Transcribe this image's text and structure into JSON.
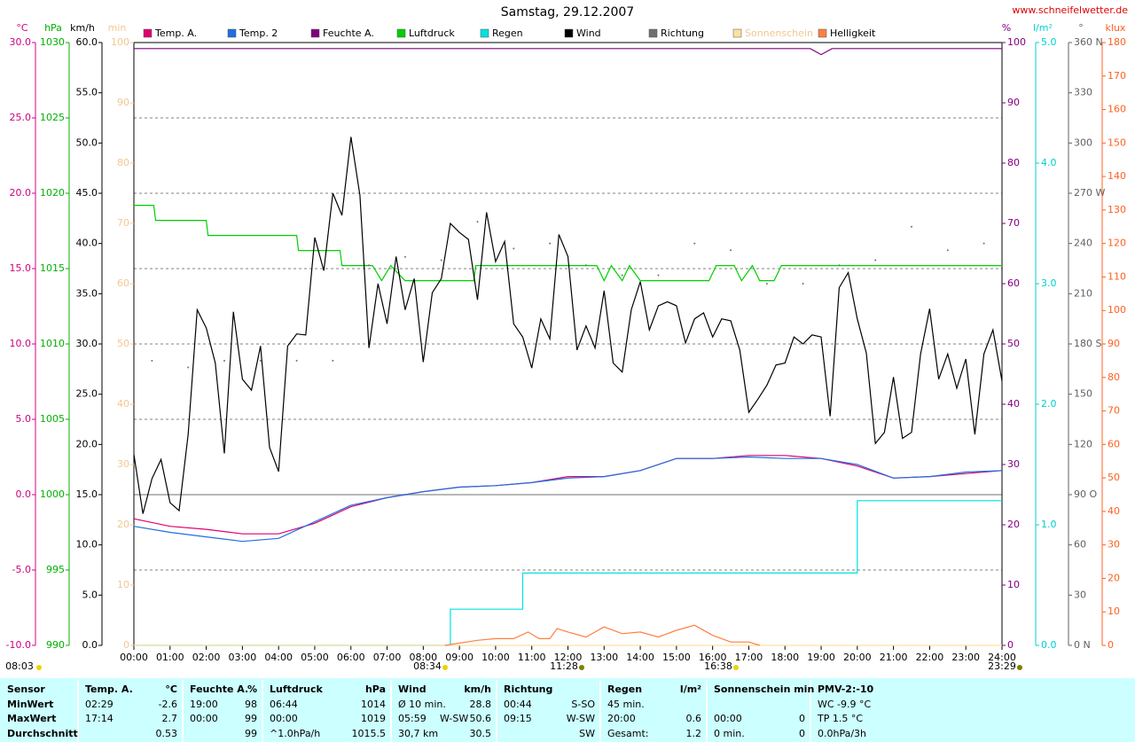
{
  "chart_data": {
    "type": "line",
    "title": "Samstag, 29.12.2007",
    "source": "www.schneifelwetter.de",
    "xlim": [
      0,
      24
    ],
    "xticks": [
      {
        "value": 0,
        "label": "00:00"
      },
      {
        "value": 1,
        "label": "01:00"
      },
      {
        "value": 2,
        "label": "02:00"
      },
      {
        "value": 3,
        "label": "03:00"
      },
      {
        "value": 4,
        "label": "04:00"
      },
      {
        "value": 5,
        "label": "05:00"
      },
      {
        "value": 6,
        "label": "06:00"
      },
      {
        "value": 7,
        "label": "07:00"
      },
      {
        "value": 8,
        "label": "08:00"
      },
      {
        "value": 9,
        "label": "09:00"
      },
      {
        "value": 10,
        "label": "10:00"
      },
      {
        "value": 11,
        "label": "11:00"
      },
      {
        "value": 12,
        "label": "12:00"
      },
      {
        "value": 13,
        "label": "13:00"
      },
      {
        "value": 14,
        "label": "14:00"
      },
      {
        "value": 15,
        "label": "15:00"
      },
      {
        "value": 16,
        "label": "16:00"
      },
      {
        "value": 17,
        "label": "17:00"
      },
      {
        "value": 18,
        "label": "18:00"
      },
      {
        "value": 19,
        "label": "19:00"
      },
      {
        "value": 20,
        "label": "20:00"
      },
      {
        "value": 21,
        "label": "21:00"
      },
      {
        "value": 22,
        "label": "22:00"
      },
      {
        "value": 23,
        "label": "23:00"
      },
      {
        "value": 24,
        "label": "24:00"
      }
    ],
    "grid": true,
    "annotations": [
      "08:03",
      "08:34",
      "11:28",
      "16:38",
      "23:29"
    ],
    "axes": {
      "temp": {
        "label": "°C",
        "color": "#d0007f",
        "lim": [
          -10,
          30
        ],
        "ticks": [
          {
            "value": -10,
            "label": "-10.0"
          },
          {
            "value": -5,
            "label": "-5.0"
          },
          {
            "value": 0,
            "label": "0.0"
          },
          {
            "value": 5,
            "label": "5.0"
          },
          {
            "value": 10,
            "label": "10.0"
          },
          {
            "value": 15,
            "label": "15.0"
          },
          {
            "value": 20,
            "label": "20.0"
          },
          {
            "value": 25,
            "label": "25.0"
          },
          {
            "value": 30,
            "label": "30.0"
          }
        ]
      },
      "hpa": {
        "label": "hPa",
        "color": "#00b000",
        "lim": [
          990,
          1030
        ],
        "ticks": [
          990,
          995,
          1000,
          1005,
          1010,
          1015,
          1020,
          1025,
          1030
        ]
      },
      "kmh": {
        "label": "km/h",
        "color": "#000000",
        "lim": [
          0,
          60
        ],
        "ticks": [
          {
            "value": 0,
            "label": "0.0"
          },
          {
            "value": 5,
            "label": "5.0"
          },
          {
            "value": 10,
            "label": "10.0"
          },
          {
            "value": 15,
            "label": "15.0"
          },
          {
            "value": 20,
            "label": "20.0"
          },
          {
            "value": 25,
            "label": "25.0"
          },
          {
            "value": 30,
            "label": "30.0"
          },
          {
            "value": 35,
            "label": "35.0"
          },
          {
            "value": 40,
            "label": "40.0"
          },
          {
            "value": 45,
            "label": "45.0"
          },
          {
            "value": 50,
            "label": "50.0"
          },
          {
            "value": 55,
            "label": "55.0"
          },
          {
            "value": 60,
            "label": "60.0"
          }
        ]
      },
      "min": {
        "label": "min",
        "color": "#f0c890",
        "lim": [
          0,
          100
        ],
        "ticks": [
          0,
          10,
          20,
          30,
          40,
          50,
          60,
          70,
          80,
          90,
          100
        ]
      },
      "pct": {
        "label": "%",
        "color": "#800080",
        "lim": [
          0,
          100
        ],
        "ticks": [
          0,
          10,
          20,
          30,
          40,
          50,
          60,
          70,
          80,
          90,
          100
        ]
      },
      "rain": {
        "label": "l/m²",
        "color": "#00d0d0",
        "lim": [
          0,
          5
        ],
        "ticks": [
          {
            "value": 0,
            "label": "0.0"
          },
          {
            "value": 1,
            "label": "1.0"
          },
          {
            "value": 2,
            "label": "2.0"
          },
          {
            "value": 3,
            "label": "3.0"
          },
          {
            "value": 4,
            "label": "4.0"
          },
          {
            "value": 5,
            "label": "5.0"
          }
        ]
      },
      "dir": {
        "label": "°",
        "color": "#606060",
        "lim": [
          0,
          360
        ],
        "ticks": [
          {
            "value": 0,
            "label": "0 N"
          },
          30,
          60,
          {
            "value": 90,
            "label": "90 O"
          },
          120,
          150,
          {
            "value": 180,
            "label": "180 S"
          },
          210,
          240,
          {
            "value": 270,
            "label": "270 W"
          },
          300,
          330,
          {
            "value": 360,
            "label": "360 N"
          }
        ]
      },
      "klux": {
        "label": "klux",
        "color": "#ff6020",
        "lim": [
          0,
          180
        ],
        "ticks": [
          0,
          10,
          20,
          30,
          40,
          50,
          60,
          70,
          80,
          90,
          100,
          110,
          120,
          130,
          140,
          150,
          160,
          170,
          180
        ]
      }
    },
    "series": [
      {
        "name": "Temp. A.",
        "color": "#e0006f",
        "axis": "temp",
        "x": [
          0,
          1,
          2,
          3,
          4,
          5,
          6,
          7,
          8,
          9,
          10,
          11,
          12,
          13,
          14,
          15,
          16,
          17,
          18,
          19,
          20,
          21,
          22,
          23,
          24
        ],
        "values": [
          -1.6,
          -2.1,
          -2.3,
          -2.6,
          -2.6,
          -1.9,
          -0.8,
          -0.2,
          0.2,
          0.5,
          0.6,
          0.8,
          1.2,
          1.2,
          1.6,
          2.4,
          2.4,
          2.6,
          2.6,
          2.4,
          1.9,
          1.1,
          1.2,
          1.4,
          1.6
        ]
      },
      {
        "name": "Temp. 2",
        "color": "#1f6fe0",
        "axis": "temp",
        "x": [
          0,
          1,
          2,
          3,
          4,
          5,
          6,
          7,
          8,
          9,
          10,
          11,
          12,
          13,
          14,
          15,
          16,
          17,
          18,
          19,
          20,
          21,
          22,
          23,
          24
        ],
        "values": [
          -2.1,
          -2.5,
          -2.8,
          -3.1,
          -2.9,
          -1.8,
          -0.7,
          -0.2,
          0.2,
          0.5,
          0.6,
          0.8,
          1.1,
          1.2,
          1.6,
          2.4,
          2.4,
          2.5,
          2.4,
          2.4,
          2.0,
          1.1,
          1.2,
          1.5,
          1.6
        ]
      },
      {
        "name": "Feuchte A.",
        "color": "#800080",
        "axis": "pct",
        "x": [
          0,
          18.7,
          19,
          19.3,
          24
        ],
        "values": [
          99,
          99,
          98,
          99,
          99
        ]
      },
      {
        "name": "Luftdruck",
        "color": "#00d000",
        "axis": "hpa",
        "x": [
          0,
          0.55,
          0.6,
          2,
          2.05,
          4.5,
          4.55,
          5.7,
          5.75,
          6.6,
          6.85,
          7.1,
          7.5,
          9.4,
          9.45,
          12.8,
          13,
          13.2,
          13.5,
          13.7,
          14,
          15.9,
          16.1,
          16.6,
          16.8,
          17.1,
          17.3,
          17.7,
          17.9,
          24
        ],
        "values": [
          1019.2,
          1019.2,
          1018.2,
          1018.2,
          1017.2,
          1017.2,
          1016.2,
          1016.2,
          1015.2,
          1015.2,
          1014.2,
          1015.2,
          1014.2,
          1014.2,
          1015.2,
          1015.2,
          1014.2,
          1015.2,
          1014.2,
          1015.2,
          1014.2,
          1014.2,
          1015.2,
          1015.2,
          1014.2,
          1015.2,
          1014.2,
          1014.2,
          1015.2,
          1015.2
        ]
      },
      {
        "name": "Regen",
        "color": "#00e0e0",
        "axis": "rain",
        "x": [
          0,
          8.75,
          8.75,
          10.75,
          10.75,
          20,
          20,
          24
        ],
        "values": [
          0,
          0,
          0.3,
          0.3,
          0.6,
          0.6,
          1.2,
          1.2
        ]
      },
      {
        "name": "Wind",
        "color": "#000000",
        "axis": "kmh",
        "x": [
          0,
          0.25,
          0.5,
          0.75,
          1,
          1.25,
          1.5,
          1.75,
          2,
          2.25,
          2.5,
          2.75,
          3,
          3.25,
          3.5,
          3.75,
          4,
          4.25,
          4.5,
          4.75,
          5,
          5.25,
          5.5,
          5.75,
          6,
          6.25,
          6.5,
          6.75,
          7,
          7.25,
          7.5,
          7.75,
          8,
          8.25,
          8.5,
          8.75,
          9,
          9.25,
          9.5,
          9.75,
          10,
          10.25,
          10.5,
          10.75,
          11,
          11.25,
          11.5,
          11.75,
          12,
          12.25,
          12.5,
          12.75,
          13,
          13.25,
          13.5,
          13.75,
          14,
          14.25,
          14.5,
          14.75,
          15,
          15.25,
          15.5,
          15.75,
          16,
          16.25,
          16.5,
          16.75,
          17,
          17.25,
          17.5,
          17.75,
          18,
          18.25,
          18.5,
          18.75,
          19,
          19.25,
          19.5,
          19.75,
          20,
          20.25,
          20.5,
          20.75,
          21,
          21.25,
          21.5,
          21.75,
          22,
          22.25,
          22.5,
          22.75,
          23,
          23.25,
          23.5,
          23.75,
          24
        ],
        "values": [
          19.0,
          13.1,
          16.6,
          18.5,
          14.2,
          13.4,
          21.0,
          33.4,
          31.6,
          28.1,
          19.1,
          33.2,
          26.5,
          25.4,
          29.8,
          19.7,
          17.3,
          29.8,
          31.0,
          30.9,
          40.6,
          37.3,
          45.0,
          42.8,
          50.6,
          44.8,
          29.6,
          36.0,
          32.0,
          38.7,
          33.4,
          36.5,
          28.2,
          35.1,
          36.5,
          42.0,
          41.1,
          40.4,
          34.4,
          43.1,
          38.2,
          40.2,
          32.0,
          30.7,
          27.6,
          32.5,
          30.5,
          40.9,
          38.7,
          29.4,
          31.8,
          29.6,
          35.3,
          28.1,
          27.2,
          33.4,
          36.2,
          31.4,
          33.8,
          34.2,
          33.8,
          30.1,
          32.5,
          33.1,
          30.7,
          32.5,
          32.3,
          29.4,
          23.2,
          24.5,
          25.9,
          27.9,
          28.1,
          30.7,
          30.0,
          30.9,
          30.7,
          22.8,
          35.6,
          37.1,
          32.5,
          29.1,
          20.1,
          21.2,
          26.7,
          20.6,
          21.2,
          29.0,
          33.5,
          26.5,
          29.0,
          25.6,
          28.5,
          21.0,
          29.0,
          31.4,
          26.3
        ]
      },
      {
        "name": "Richtung",
        "color": "#707070",
        "axis": "dir",
        "style": "dots",
        "x": [
          0.5,
          1.5,
          2.5,
          3.5,
          4.5,
          5.5,
          6.5,
          7.5,
          8.5,
          9.5,
          10.5,
          11.5,
          12.5,
          13.5,
          14.5,
          15.5,
          16.5,
          17.5,
          18.5,
          19.5,
          20.5,
          21.5,
          22.5,
          23.5
        ],
        "values": [
          170,
          166,
          170,
          170,
          170,
          170,
          227,
          232,
          230,
          253,
          237,
          240,
          227,
          221,
          221,
          240,
          236,
          216,
          216,
          227,
          230,
          250,
          236,
          240
        ]
      },
      {
        "name": "Sonnenschein",
        "color": "#ffe0a0",
        "axis": "min",
        "x": [
          0,
          24
        ],
        "values": [
          0,
          0
        ]
      },
      {
        "name": "Helligkeit",
        "color": "#ff7f40",
        "axis": "klux",
        "x": [
          8.6,
          9.5,
          10,
          10.5,
          10.9,
          11.2,
          11.5,
          11.7,
          12,
          12.5,
          13,
          13.5,
          14,
          14.5,
          15,
          15.5,
          16,
          16.5,
          17,
          17.3
        ],
        "values": [
          0,
          1.5,
          2,
          2,
          4,
          2,
          2,
          5,
          4,
          2.5,
          5.5,
          3.5,
          4,
          2.5,
          4.5,
          6,
          3,
          1,
          1,
          0
        ]
      }
    ]
  },
  "table": {
    "groups": [
      {
        "header": [
          "Sensor"
        ],
        "rows": [
          [
            "MinWert"
          ],
          [
            "MaxWert"
          ],
          [
            "Durchschnitt"
          ]
        ]
      },
      {
        "header": [
          "Temp. A.",
          "°C"
        ],
        "rows": [
          [
            "02:29",
            "-2.6"
          ],
          [
            "17:14",
            "2.7"
          ],
          [
            null,
            "0.53"
          ]
        ]
      },
      {
        "header": [
          "Feuchte A.",
          "%"
        ],
        "rows": [
          [
            "19:00",
            "98"
          ],
          [
            "00:00",
            "99"
          ],
          [
            null,
            "99"
          ]
        ]
      },
      {
        "header": [
          "Luftdruck",
          "hPa"
        ],
        "rows": [
          [
            "06:44",
            "1014"
          ],
          [
            "00:00",
            "1019"
          ],
          [
            "^1.0hPa/h",
            "1015.5"
          ]
        ]
      },
      {
        "header": [
          "Wind",
          null,
          "km/h"
        ],
        "rows": [
          [
            "Ø 10 min.",
            null,
            "28.8"
          ],
          [
            "05:59",
            "W-SW",
            "50.6"
          ],
          [
            "30,7 km",
            null,
            "30.5"
          ]
        ]
      },
      {
        "header": [
          "Richtung",
          null
        ],
        "rows": [
          [
            "00:44",
            "S-SO"
          ],
          [
            "09:15",
            "W-SW"
          ],
          [
            null,
            "SW"
          ]
        ]
      },
      {
        "header": [
          "Regen",
          "l/m²"
        ],
        "rows": [
          [
            "45 min.",
            null
          ],
          [
            "20:00",
            "0.6"
          ],
          [
            "Gesamt:",
            "1.2"
          ]
        ]
      },
      {
        "header": [
          "Sonnenschein min",
          null
        ],
        "rows": [
          [
            null,
            null
          ],
          [
            "00:00",
            "0"
          ],
          [
            "0 min.",
            "0"
          ]
        ]
      },
      {
        "header": [
          "PMV-2:-10"
        ],
        "rows": [
          [
            "WC -9.9 °C"
          ],
          [
            "TP 1.5 °C"
          ],
          [
            "0.0hPa/3h"
          ]
        ]
      }
    ]
  }
}
